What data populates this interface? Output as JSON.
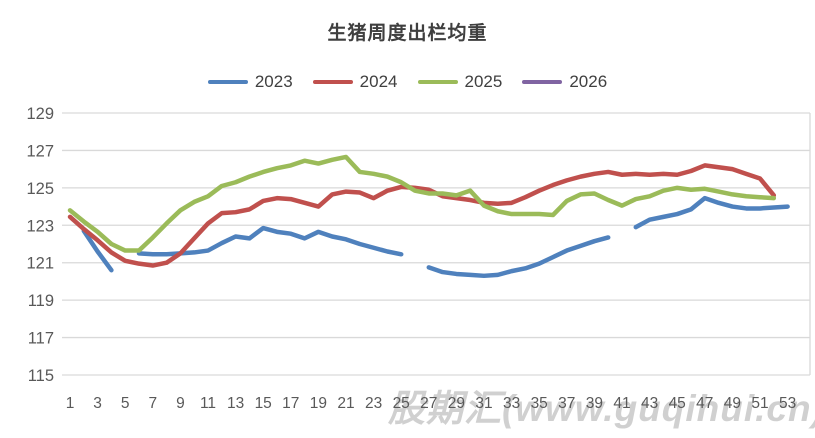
{
  "chart": {
    "title": "生猪周度出栏均重",
    "watermark": "股期汇(www.guqihui.cn)",
    "background": "#ffffff",
    "gridline_color": "#d9d9d9",
    "axis_text_color": "#595959"
  },
  "chart_data": {
    "type": "line",
    "title": "生猪周度出栏均重",
    "xlabel": "",
    "ylabel": "",
    "x": [
      1,
      2,
      3,
      4,
      5,
      6,
      7,
      8,
      9,
      10,
      11,
      12,
      13,
      14,
      15,
      16,
      17,
      18,
      19,
      20,
      21,
      22,
      23,
      24,
      25,
      26,
      27,
      28,
      29,
      30,
      31,
      32,
      33,
      34,
      35,
      36,
      37,
      38,
      39,
      40,
      41,
      42,
      43,
      44,
      45,
      46,
      47,
      48,
      49,
      50,
      51,
      52,
      53
    ],
    "x_tick_labels": [
      1,
      3,
      5,
      7,
      9,
      11,
      13,
      15,
      17,
      19,
      21,
      23,
      25,
      27,
      29,
      31,
      33,
      35,
      37,
      39,
      41,
      43,
      45,
      47,
      49,
      51,
      53
    ],
    "y_ticks": [
      115,
      117,
      119,
      121,
      123,
      125,
      127,
      129
    ],
    "ylim": [
      115,
      129
    ],
    "grid": "horizontal-only",
    "legend_position": "top",
    "series": [
      {
        "name": "2023",
        "color": "#4F81BD",
        "values": [
          null,
          122.7,
          121.6,
          120.6,
          null,
          121.5,
          121.45,
          121.45,
          121.5,
          121.55,
          121.65,
          122.05,
          122.4,
          122.3,
          122.85,
          122.65,
          122.55,
          122.3,
          122.65,
          122.4,
          122.25,
          122.0,
          121.8,
          121.6,
          121.45,
          null,
          120.75,
          120.5,
          120.4,
          120.35,
          120.3,
          120.35,
          120.55,
          120.7,
          120.95,
          121.3,
          121.65,
          121.9,
          122.15,
          122.35,
          null,
          122.9,
          123.3,
          123.45,
          123.6,
          123.85,
          124.45,
          124.2,
          124.0,
          123.9,
          123.9,
          123.95,
          124.0
        ]
      },
      {
        "name": "2024",
        "color": "#C0504D",
        "values": [
          123.45,
          122.8,
          122.2,
          121.55,
          121.1,
          120.95,
          120.85,
          121.0,
          121.5,
          122.3,
          123.1,
          123.65,
          123.7,
          123.85,
          124.3,
          124.45,
          124.4,
          124.2,
          124.0,
          124.65,
          124.8,
          124.75,
          124.45,
          124.85,
          125.05,
          125.0,
          124.9,
          124.55,
          124.45,
          124.35,
          124.2,
          124.15,
          124.2,
          124.5,
          124.85,
          125.15,
          125.4,
          125.6,
          125.75,
          125.85,
          125.7,
          125.75,
          125.7,
          125.75,
          125.7,
          125.9,
          126.2,
          126.1,
          126.0,
          125.75,
          125.5,
          124.6,
          null
        ]
      },
      {
        "name": "2025",
        "color": "#9BBB59",
        "values": [
          123.8,
          123.2,
          122.65,
          122.0,
          121.65,
          121.65,
          122.35,
          123.1,
          123.8,
          124.25,
          124.55,
          125.1,
          125.3,
          125.6,
          125.85,
          126.05,
          126.2,
          126.45,
          126.3,
          126.5,
          126.65,
          125.85,
          125.75,
          125.6,
          125.3,
          124.85,
          124.7,
          124.7,
          124.6,
          124.85,
          124.05,
          123.75,
          123.6,
          123.6,
          123.6,
          123.55,
          124.3,
          124.65,
          124.7,
          124.35,
          124.05,
          124.4,
          124.55,
          124.85,
          125.0,
          124.9,
          124.95,
          124.8,
          124.65,
          124.55,
          124.5,
          124.45,
          null
        ]
      },
      {
        "name": "2026",
        "color": "#8064A2",
        "values": [
          null,
          null,
          null,
          null,
          null,
          null,
          null,
          null,
          null,
          null,
          null,
          null,
          null,
          null,
          null,
          null,
          null,
          null,
          null,
          null,
          null,
          null,
          null,
          null,
          null,
          null,
          null,
          null,
          null,
          null,
          null,
          null,
          null,
          null,
          null,
          null,
          null,
          null,
          null,
          null,
          null,
          null,
          null,
          null,
          null,
          null,
          null,
          null,
          null,
          null,
          null,
          null,
          null
        ]
      }
    ]
  }
}
